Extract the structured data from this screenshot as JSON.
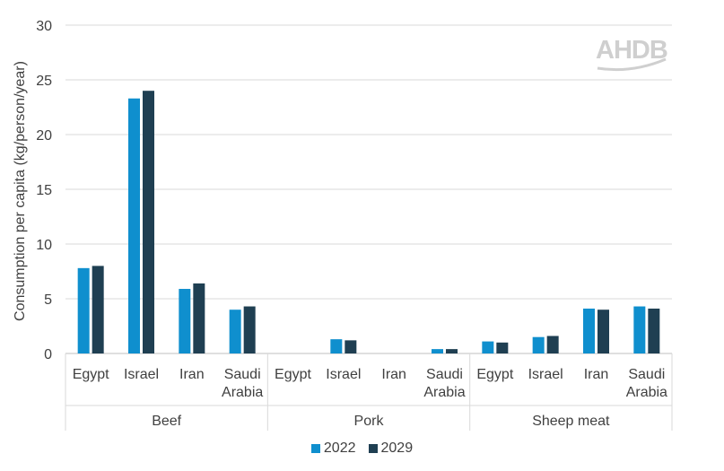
{
  "chart_data": {
    "type": "bar",
    "title": "",
    "ylabel": "Consumption per capita (kg/person/year)",
    "ylim": [
      0,
      30
    ],
    "yticks": [
      "0",
      "5",
      "10",
      "15",
      "20",
      "25",
      "30"
    ],
    "groups": [
      {
        "name": "Beef",
        "categories": [
          "Egypt",
          "Israel",
          "Iran",
          "Saudi Arabia"
        ]
      },
      {
        "name": "Pork",
        "categories": [
          "Egypt",
          "Israel",
          "Iran",
          "Saudi Arabia"
        ]
      },
      {
        "name": "Sheep meat",
        "categories": [
          "Egypt",
          "Israel",
          "Iran",
          "Saudi Arabia"
        ]
      }
    ],
    "series": [
      {
        "name": "2022",
        "color": "#0f8fce",
        "values": [
          7.8,
          23.3,
          5.9,
          4.0,
          0.0,
          1.3,
          0.0,
          0.4,
          1.1,
          1.5,
          4.1,
          4.3
        ]
      },
      {
        "name": "2029",
        "color": "#1f3f52",
        "values": [
          8.0,
          24.0,
          6.4,
          4.3,
          0.0,
          1.2,
          0.0,
          0.4,
          1.0,
          1.6,
          4.0,
          4.1
        ]
      }
    ],
    "grid": true,
    "legend_position": "bottom"
  },
  "logo": {
    "text": "AHDB"
  }
}
